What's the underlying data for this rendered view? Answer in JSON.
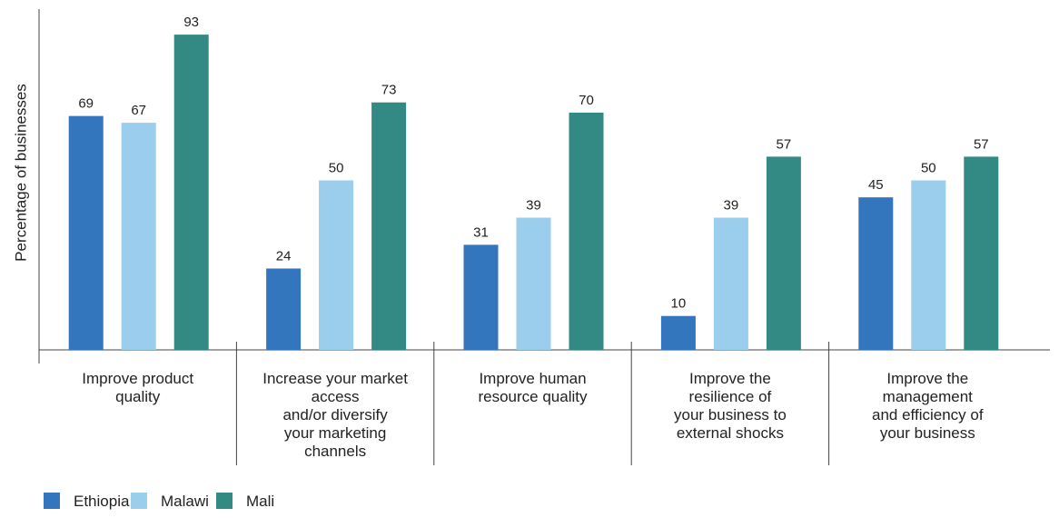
{
  "chart_data": {
    "type": "bar",
    "ylabel": "Percentage of businesses",
    "xlabel": "",
    "title": "",
    "ylim": [
      0,
      100
    ],
    "grid": false,
    "legend_position": "bottom-left",
    "categories": [
      [
        "Improve product",
        "quality"
      ],
      [
        "Increase your market",
        "access",
        "and/or diversify",
        "your marketing",
        "channels"
      ],
      [
        "Improve human",
        "resource quality"
      ],
      [
        "Improve the",
        "resilience of",
        "your business to",
        "external shocks"
      ],
      [
        "Improve the",
        "management",
        "and efficiency of",
        "your business"
      ]
    ],
    "series": [
      {
        "name": "Ethiopia",
        "color": "#3476bd",
        "values": [
          69,
          24,
          31,
          10,
          45
        ]
      },
      {
        "name": "Malawi",
        "color": "#9bcdec",
        "values": [
          67,
          50,
          39,
          39,
          50
        ]
      },
      {
        "name": "Mali",
        "color": "#338a84",
        "values": [
          93,
          73,
          70,
          57,
          57
        ]
      }
    ]
  }
}
